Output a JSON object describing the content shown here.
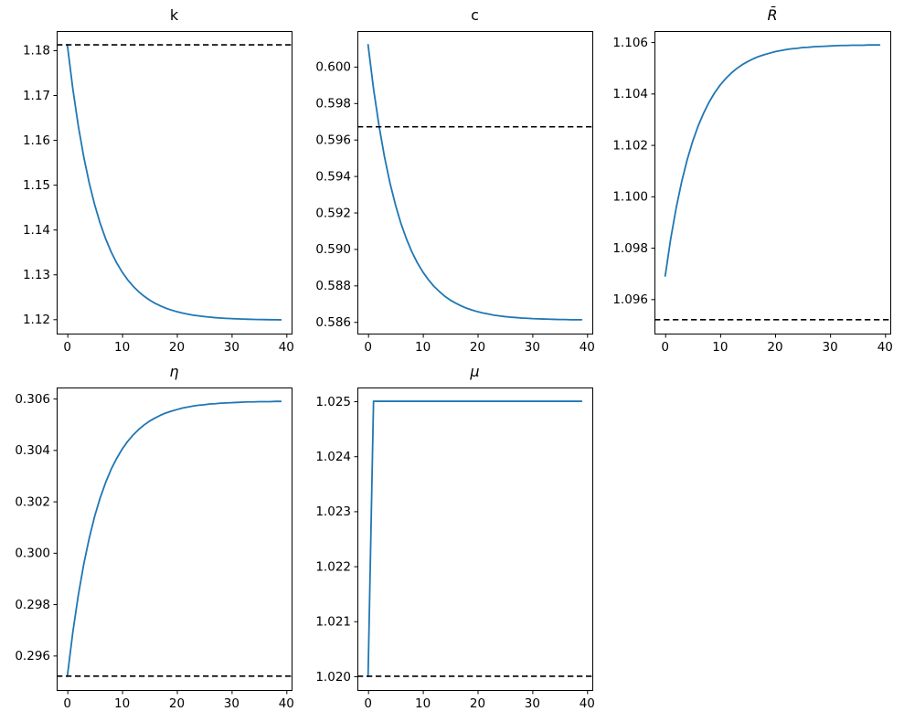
{
  "figure": {
    "background": "#ffffff",
    "description": "Five-panel line figure of transition paths converging to steady state, with dashed steady-state reference lines"
  },
  "chart_data": {
    "type": "line",
    "layout": "2x3-grid-last-cell-empty",
    "grid": "off",
    "legend": "none",
    "line_color": "#1f77b4",
    "steady_state_color": "#000000",
    "steady_state_style": "dashed",
    "x": [
      0,
      1,
      2,
      3,
      4,
      5,
      6,
      7,
      8,
      9,
      10,
      11,
      12,
      13,
      14,
      15,
      16,
      17,
      18,
      19,
      20,
      21,
      22,
      23,
      24,
      25,
      26,
      27,
      28,
      29,
      30,
      31,
      32,
      33,
      34,
      35,
      36,
      37,
      38,
      39
    ],
    "xticks": [
      0,
      10,
      20,
      30,
      40
    ],
    "xtick_labels": [
      "0",
      "10",
      "20",
      "30",
      "40"
    ],
    "xlim": [
      -1.95,
      40.95
    ],
    "charts": [
      {
        "id": "k",
        "title": "k",
        "steady_state": 1.1812,
        "ylim": [
          1.1168,
          1.18427
        ],
        "yticks": [
          1.12,
          1.13,
          1.14,
          1.15,
          1.16,
          1.17,
          1.18
        ],
        "ytick_labels": [
          "1.12",
          "1.13",
          "1.14",
          "1.15",
          "1.16",
          "1.17",
          "1.18"
        ],
        "values": [
          1.1812,
          1.17138,
          1.16312,
          1.15619,
          1.15037,
          1.14548,
          1.14137,
          1.13792,
          1.13502,
          1.13258,
          1.13054,
          1.12882,
          1.12738,
          1.12617,
          1.12515,
          1.12429,
          1.12357,
          1.12297,
          1.12246,
          1.12204,
          1.12168,
          1.12138,
          1.12113,
          1.12091,
          1.12074,
          1.12059,
          1.12046,
          1.12035,
          1.12027,
          1.12019,
          1.12013,
          1.12008,
          1.12003,
          1.12,
          1.11996,
          1.11994,
          1.11992,
          1.1199,
          1.11988,
          1.11987
        ]
      },
      {
        "id": "c",
        "title": "c",
        "steady_state": 0.5967,
        "ylim": [
          0.58536,
          0.60195
        ],
        "yticks": [
          0.586,
          0.588,
          0.59,
          0.592,
          0.594,
          0.596,
          0.598,
          0.6
        ],
        "ytick_labels": [
          "0.586",
          "0.588",
          "0.590",
          "0.592",
          "0.594",
          "0.596",
          "0.598",
          "0.600"
        ],
        "values": [
          0.6012,
          0.59878,
          0.59676,
          0.59505,
          0.59362,
          0.59242,
          0.5914,
          0.59056,
          0.58984,
          0.58924,
          0.58874,
          0.58832,
          0.58796,
          0.58767,
          0.58741,
          0.5872,
          0.58703,
          0.58688,
          0.58675,
          0.58665,
          0.58656,
          0.58649,
          0.58643,
          0.58637,
          0.58633,
          0.58629,
          0.58626,
          0.58624,
          0.58621,
          0.5862,
          0.58618,
          0.58617,
          0.58616,
          0.58615,
          0.58614,
          0.58613,
          0.58613,
          0.58612,
          0.58612,
          0.58612
        ]
      },
      {
        "id": "Rbar",
        "title": "R̄",
        "steady_state": 1.0952,
        "ylim": [
          1.09466,
          1.10643
        ],
        "yticks": [
          1.096,
          1.098,
          1.1,
          1.102,
          1.104,
          1.106
        ],
        "ytick_labels": [
          "1.096",
          "1.098",
          "1.100",
          "1.102",
          "1.104",
          "1.106"
        ],
        "values": [
          1.0969,
          1.09834,
          1.09955,
          1.10057,
          1.10142,
          1.10214,
          1.10274,
          1.10324,
          1.10367,
          1.10403,
          1.10433,
          1.10458,
          1.10479,
          1.10497,
          1.10512,
          1.10524,
          1.10535,
          1.10544,
          1.10551,
          1.10557,
          1.10563,
          1.10567,
          1.10571,
          1.10574,
          1.10576,
          1.10579,
          1.1058,
          1.10582,
          1.10583,
          1.10584,
          1.10585,
          1.10586,
          1.10587,
          1.10587,
          1.10588,
          1.10588,
          1.10588,
          1.10589,
          1.10589,
          1.10589
        ]
      },
      {
        "id": "eta",
        "title": "η",
        "steady_state": 0.2952,
        "ylim": [
          0.29466,
          0.30643
        ],
        "yticks": [
          0.296,
          0.298,
          0.3,
          0.302,
          0.304,
          0.306
        ],
        "ytick_labels": [
          "0.296",
          "0.298",
          "0.300",
          "0.302",
          "0.304",
          "0.306"
        ],
        "values": [
          0.2952,
          0.29691,
          0.29835,
          0.29956,
          0.30057,
          0.30143,
          0.30214,
          0.30274,
          0.30325,
          0.30367,
          0.30403,
          0.30433,
          0.30458,
          0.30479,
          0.30497,
          0.30512,
          0.30524,
          0.30535,
          0.30544,
          0.30551,
          0.30557,
          0.30563,
          0.30567,
          0.30571,
          0.30574,
          0.30576,
          0.30579,
          0.3058,
          0.30582,
          0.30583,
          0.30584,
          0.30585,
          0.30586,
          0.30587,
          0.30587,
          0.30588,
          0.30588,
          0.30588,
          0.30589,
          0.30589
        ]
      },
      {
        "id": "mu",
        "title": "μ",
        "steady_state": 1.02,
        "ylim": [
          1.01975,
          1.02525
        ],
        "yticks": [
          1.02,
          1.021,
          1.022,
          1.023,
          1.024,
          1.025
        ],
        "ytick_labels": [
          "1.020",
          "1.021",
          "1.022",
          "1.023",
          "1.024",
          "1.025"
        ],
        "values": [
          1.02,
          1.025,
          1.025,
          1.025,
          1.025,
          1.025,
          1.025,
          1.025,
          1.025,
          1.025,
          1.025,
          1.025,
          1.025,
          1.025,
          1.025,
          1.025,
          1.025,
          1.025,
          1.025,
          1.025,
          1.025,
          1.025,
          1.025,
          1.025,
          1.025,
          1.025,
          1.025,
          1.025,
          1.025,
          1.025,
          1.025,
          1.025,
          1.025,
          1.025,
          1.025,
          1.025,
          1.025,
          1.025,
          1.025,
          1.025
        ]
      }
    ]
  }
}
